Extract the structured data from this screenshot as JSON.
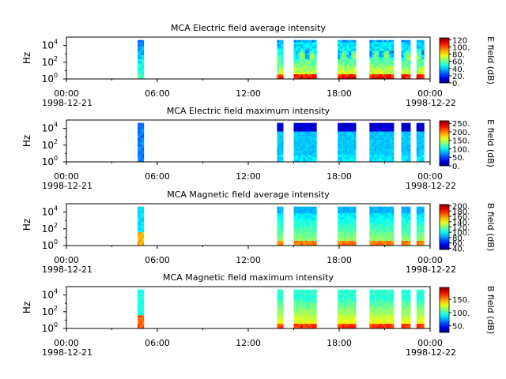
{
  "chart_data": [
    {
      "type": "heatmap",
      "title": "MCA  Electric field average intensity",
      "ylabel": "Hz",
      "yscale": "log",
      "ylim": [
        1,
        100000
      ],
      "yticks": [
        {
          "v": 1,
          "base": "10",
          "exp": "0"
        },
        {
          "v": 100,
          "base": "10",
          "exp": "2"
        },
        {
          "v": 10000,
          "base": "10",
          "exp": "4"
        }
      ],
      "xticks": [
        {
          "hour": 0,
          "label": "00:00",
          "date": "1998-12-21"
        },
        {
          "hour": 6,
          "label": "06:00",
          "date": ""
        },
        {
          "hour": 12,
          "label": "12:00",
          "date": ""
        },
        {
          "hour": 18,
          "label": "18:00",
          "date": ""
        },
        {
          "hour": 24,
          "label": "00:00",
          "date": "1998-12-22"
        }
      ],
      "colorbar": {
        "label": "E field (dB)",
        "range": [
          0,
          125
        ],
        "ticks": [
          {
            "v": 0,
            "label": "0."
          },
          {
            "v": 20,
            "label": "20."
          },
          {
            "v": 40,
            "label": "40."
          },
          {
            "v": 60,
            "label": "60."
          },
          {
            "v": 80,
            "label": "80."
          },
          {
            "v": 100,
            "label": "100."
          },
          {
            "v": 120,
            "label": "120"
          }
        ]
      },
      "profile": "e_avg",
      "data_intervals_hours": [
        [
          4.7,
          5.1
        ],
        [
          13.9,
          14.3
        ],
        [
          15.0,
          16.5
        ],
        [
          17.9,
          19.1
        ],
        [
          20.0,
          21.6
        ],
        [
          22.1,
          22.7
        ],
        [
          23.1,
          23.6
        ]
      ]
    },
    {
      "type": "heatmap",
      "title": "MCA  Electric field maximum intensity",
      "ylabel": "Hz",
      "yscale": "log",
      "ylim": [
        1,
        100000
      ],
      "yticks": [
        {
          "v": 1,
          "base": "10",
          "exp": "0"
        },
        {
          "v": 100,
          "base": "10",
          "exp": "2"
        },
        {
          "v": 10000,
          "base": "10",
          "exp": "4"
        }
      ],
      "xticks": [
        {
          "hour": 0,
          "label": "00:00",
          "date": "1998-12-21"
        },
        {
          "hour": 6,
          "label": "06:00",
          "date": ""
        },
        {
          "hour": 12,
          "label": "12:00",
          "date": ""
        },
        {
          "hour": 18,
          "label": "18:00",
          "date": ""
        },
        {
          "hour": 24,
          "label": "00:00",
          "date": "1998-12-22"
        }
      ],
      "colorbar": {
        "label": "E field (dB)",
        "range": [
          0,
          265
        ],
        "ticks": [
          {
            "v": 0,
            "label": "0."
          },
          {
            "v": 50,
            "label": "50."
          },
          {
            "v": 100,
            "label": "100."
          },
          {
            "v": 150,
            "label": "150."
          },
          {
            "v": 200,
            "label": "200."
          },
          {
            "v": 250,
            "label": "250."
          }
        ]
      },
      "profile": "e_max",
      "data_intervals_hours": [
        [
          4.7,
          5.1
        ],
        [
          13.9,
          14.3
        ],
        [
          15.0,
          16.5
        ],
        [
          17.9,
          19.1
        ],
        [
          20.0,
          21.6
        ],
        [
          22.1,
          22.7
        ],
        [
          23.1,
          23.6
        ]
      ]
    },
    {
      "type": "heatmap",
      "title": "MCA  Magnetic field average intensity",
      "ylabel": "Hz",
      "yscale": "log",
      "ylim": [
        1,
        100000
      ],
      "yticks": [
        {
          "v": 1,
          "base": "10",
          "exp": "0"
        },
        {
          "v": 100,
          "base": "10",
          "exp": "2"
        },
        {
          "v": 10000,
          "base": "10",
          "exp": "4"
        }
      ],
      "xticks": [
        {
          "hour": 0,
          "label": "00:00",
          "date": "1998-12-21"
        },
        {
          "hour": 6,
          "label": "06:00",
          "date": ""
        },
        {
          "hour": 12,
          "label": "12:00",
          "date": ""
        },
        {
          "hour": 18,
          "label": "18:00",
          "date": ""
        },
        {
          "hour": 24,
          "label": "00:00",
          "date": "1998-12-22"
        }
      ],
      "colorbar": {
        "label": "B field (dB)",
        "range": [
          35,
          205
        ],
        "ticks": [
          {
            "v": 40,
            "label": "40."
          },
          {
            "v": 60,
            "label": "60."
          },
          {
            "v": 80,
            "label": "80."
          },
          {
            "v": 100,
            "label": "100."
          },
          {
            "v": 120,
            "label": "120."
          },
          {
            "v": 140,
            "label": "140."
          },
          {
            "v": 160,
            "label": "160."
          },
          {
            "v": 180,
            "label": "180."
          },
          {
            "v": 200,
            "label": "200."
          }
        ]
      },
      "profile": "b_avg",
      "data_intervals_hours": [
        [
          4.7,
          5.1
        ],
        [
          13.9,
          14.3
        ],
        [
          15.0,
          16.5
        ],
        [
          17.9,
          19.1
        ],
        [
          20.0,
          21.6
        ],
        [
          22.1,
          22.7
        ],
        [
          23.1,
          23.6
        ]
      ]
    },
    {
      "type": "heatmap",
      "title": "MCA  Magnetic field maximum intensity",
      "ylabel": "Hz",
      "yscale": "log",
      "ylim": [
        1,
        100000
      ],
      "yticks": [
        {
          "v": 1,
          "base": "10",
          "exp": "0"
        },
        {
          "v": 100,
          "base": "10",
          "exp": "2"
        },
        {
          "v": 10000,
          "base": "10",
          "exp": "4"
        }
      ],
      "xticks": [
        {
          "hour": 0,
          "label": "00:00",
          "date": "1998-12-21"
        },
        {
          "hour": 6,
          "label": "06:00",
          "date": ""
        },
        {
          "hour": 12,
          "label": "12:00",
          "date": ""
        },
        {
          "hour": 18,
          "label": "18:00",
          "date": ""
        },
        {
          "hour": 24,
          "label": "00:00",
          "date": "1998-12-22"
        }
      ],
      "colorbar": {
        "label": "B field (dB)",
        "range": [
          25,
          195
        ],
        "ticks": [
          {
            "v": 50,
            "label": "50."
          },
          {
            "v": 100,
            "label": "100."
          },
          {
            "v": 150,
            "label": "150."
          }
        ]
      },
      "profile": "b_max",
      "data_intervals_hours": [
        [
          4.7,
          5.1
        ],
        [
          13.9,
          14.3
        ],
        [
          15.0,
          16.5
        ],
        [
          17.9,
          19.1
        ],
        [
          20.0,
          21.6
        ],
        [
          22.1,
          22.7
        ],
        [
          23.1,
          23.6
        ]
      ]
    }
  ]
}
